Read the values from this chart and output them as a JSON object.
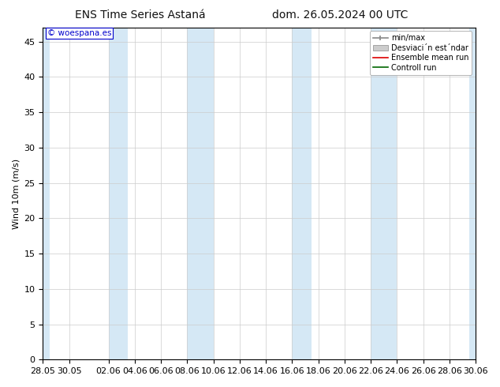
{
  "title_left": "ENS Time Series Astaná",
  "title_right": "dom. 26.05.2024 00 UTC",
  "ylabel": "Wind 10m (m/s)",
  "watermark": "© woespana.es",
  "ylim": [
    0,
    47
  ],
  "yticks": [
    0,
    5,
    10,
    15,
    20,
    25,
    30,
    35,
    40,
    45
  ],
  "xtick_labels": [
    "28.05",
    "30.05",
    "02.06",
    "04.06",
    "06.06",
    "08.06",
    "10.06",
    "12.06",
    "14.06",
    "16.06",
    "18.06",
    "20.06",
    "22.06",
    "24.06",
    "26.06",
    "28.06",
    "30.06"
  ],
  "background_color": "#ffffff",
  "plot_bg_color": "#ffffff",
  "stripe_color": "#d5e8f5",
  "spine_color": "#000000",
  "tick_color": "#000000",
  "legend_fontsize": 7,
  "axis_fontsize": 8,
  "title_fontsize": 10,
  "ylabel_fontsize": 8,
  "watermark_color": "#0000cc",
  "watermark_bg": "#ffffff",
  "watermark_border": "#0000cc"
}
